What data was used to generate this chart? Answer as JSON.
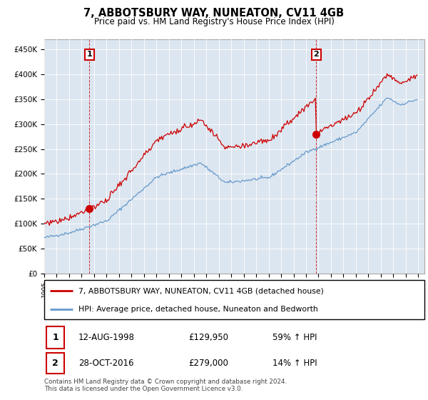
{
  "title": "7, ABBOTSBURY WAY, NUNEATON, CV11 4GB",
  "subtitle": "Price paid vs. HM Land Registry's House Price Index (HPI)",
  "ylabel_ticks": [
    "£0",
    "£50K",
    "£100K",
    "£150K",
    "£200K",
    "£250K",
    "£300K",
    "£350K",
    "£400K",
    "£450K"
  ],
  "ytick_values": [
    0,
    50000,
    100000,
    150000,
    200000,
    250000,
    300000,
    350000,
    400000,
    450000
  ],
  "ylim": [
    0,
    470000
  ],
  "xlim_start": 1995.0,
  "xlim_end": 2025.5,
  "sale1_date": 1998.62,
  "sale1_price": 129950,
  "sale1_label": "1",
  "sale2_date": 2016.83,
  "sale2_price": 279000,
  "sale2_label": "2",
  "legend_line1": "7, ABBOTSBURY WAY, NUNEATON, CV11 4GB (detached house)",
  "legend_line2": "HPI: Average price, detached house, Nuneaton and Bedworth",
  "hpi_color": "#6699cc",
  "price_color": "#cc0000",
  "marker_color": "#cc0000",
  "bg_color": "#ffffff",
  "plot_bg_color": "#dce6f0",
  "grid_color": "#ffffff",
  "footer": "Contains HM Land Registry data © Crown copyright and database right 2024.\nThis data is licensed under the Open Government Licence v3.0."
}
